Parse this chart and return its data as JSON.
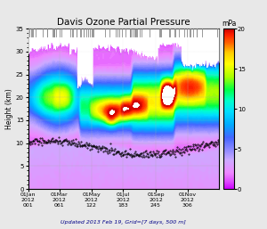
{
  "title": "Davis Ozone Partial Pressure",
  "colorbar_label": "mPa",
  "xlabel_days": [
    1,
    61,
    122,
    183,
    245,
    306
  ],
  "xlabels": [
    "01Jan\n2012\n001",
    "01Mar\n2012\n061",
    "01May\n2012\n122",
    "01Jul\n2012\n183",
    "01Sep\n2012\n245",
    "01Nov\n2012\n306"
  ],
  "ylabel": "Height (km)",
  "ylim": [
    0,
    35
  ],
  "xlim": [
    1,
    366
  ],
  "vmin": 0,
  "vmax": 20,
  "subtitle": "Updated 2013 Feb 19, Grid=[7 days, 500 m]",
  "fig_bg": "#e8e8e8",
  "colormap_nodes": [
    [
      0.0,
      "#cc00ff"
    ],
    [
      0.04,
      "#dd44ff"
    ],
    [
      0.1,
      "#ee88ff"
    ],
    [
      0.18,
      "#ccaaff"
    ],
    [
      0.25,
      "#8888ff"
    ],
    [
      0.32,
      "#4466ff"
    ],
    [
      0.4,
      "#00aaff"
    ],
    [
      0.48,
      "#00ddff"
    ],
    [
      0.55,
      "#00ffcc"
    ],
    [
      0.62,
      "#00ff44"
    ],
    [
      0.7,
      "#aaff00"
    ],
    [
      0.78,
      "#ffff00"
    ],
    [
      0.85,
      "#ffcc00"
    ],
    [
      0.91,
      "#ff6600"
    ],
    [
      0.96,
      "#ff2200"
    ],
    [
      1.0,
      "#cc0000"
    ]
  ]
}
